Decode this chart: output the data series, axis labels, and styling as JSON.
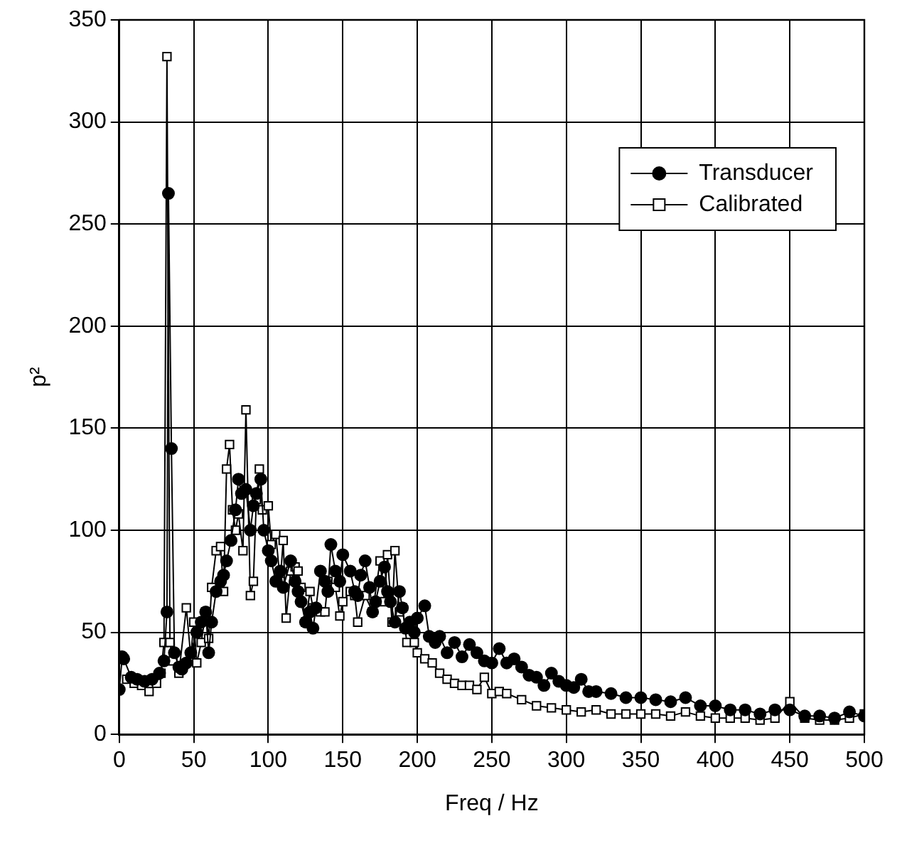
{
  "chart_data": {
    "type": "line",
    "xlabel": "Freq / Hz",
    "ylabel": "p²",
    "xlim": [
      0,
      500
    ],
    "ylim": [
      0,
      350
    ],
    "xticks": [
      0,
      50,
      100,
      150,
      200,
      250,
      300,
      350,
      400,
      450,
      500
    ],
    "yticks": [
      0,
      50,
      100,
      150,
      200,
      250,
      300,
      350
    ],
    "grid": true,
    "legend": "top right",
    "line_style": "solid",
    "series": [
      {
        "name": "Transducer",
        "color": "#000000",
        "marker": "circle",
        "x": [
          0,
          2,
          3,
          8,
          12,
          17,
          22,
          27,
          30,
          32,
          33,
          35,
          37,
          40,
          42,
          45,
          48,
          52,
          55,
          58,
          60,
          62,
          65,
          68,
          70,
          72,
          75,
          78,
          80,
          82,
          85,
          88,
          90,
          92,
          95,
          97,
          100,
          102,
          105,
          108,
          110,
          115,
          118,
          120,
          122,
          125,
          128,
          130,
          132,
          135,
          138,
          140,
          142,
          145,
          148,
          150,
          155,
          158,
          160,
          162,
          165,
          168,
          170,
          172,
          175,
          178,
          180,
          182,
          185,
          188,
          190,
          192,
          195,
          198,
          200,
          205,
          208,
          212,
          215,
          220,
          225,
          230,
          235,
          240,
          245,
          250,
          255,
          260,
          265,
          270,
          275,
          280,
          285,
          290,
          295,
          300,
          305,
          310,
          315,
          320,
          330,
          340,
          350,
          360,
          370,
          380,
          390,
          400,
          410,
          420,
          430,
          440,
          450,
          460,
          470,
          480,
          490,
          500
        ],
        "values": [
          22,
          38,
          37,
          28,
          27,
          26,
          27,
          30,
          36,
          60,
          265,
          140,
          40,
          33,
          32,
          35,
          40,
          50,
          55,
          60,
          40,
          55,
          70,
          75,
          78,
          85,
          95,
          110,
          125,
          118,
          120,
          100,
          112,
          118,
          125,
          100,
          90,
          85,
          75,
          80,
          72,
          85,
          75,
          70,
          65,
          55,
          60,
          52,
          62,
          80,
          75,
          70,
          93,
          80,
          75,
          88,
          80,
          70,
          68,
          78,
          85,
          72,
          60,
          65,
          75,
          82,
          70,
          65,
          55,
          70,
          62,
          52,
          55,
          50,
          57,
          63,
          48,
          45,
          48,
          40,
          45,
          38,
          44,
          40,
          36,
          35,
          42,
          35,
          37,
          33,
          29,
          28,
          24,
          30,
          26,
          24,
          23,
          27,
          21,
          21,
          20,
          18,
          18,
          17,
          16,
          18,
          14,
          14,
          12,
          12,
          10,
          12,
          12,
          9,
          9,
          8,
          11,
          9
        ]
      },
      {
        "name": "Calibrated",
        "color": "#000000",
        "marker": "square",
        "x": [
          5,
          10,
          15,
          20,
          25,
          28,
          30,
          32,
          34,
          36,
          40,
          45,
          48,
          50,
          52,
          55,
          58,
          60,
          62,
          65,
          68,
          70,
          72,
          74,
          76,
          78,
          80,
          83,
          85,
          88,
          90,
          92,
          94,
          96,
          100,
          102,
          105,
          108,
          110,
          112,
          115,
          118,
          120,
          122,
          125,
          128,
          130,
          135,
          138,
          140,
          145,
          148,
          150,
          155,
          158,
          160,
          165,
          170,
          175,
          178,
          180,
          183,
          185,
          188,
          190,
          193,
          198,
          200,
          205,
          210,
          215,
          220,
          225,
          230,
          235,
          240,
          245,
          250,
          255,
          260,
          270,
          280,
          290,
          300,
          310,
          320,
          330,
          340,
          350,
          360,
          370,
          380,
          390,
          400,
          410,
          420,
          430,
          440,
          450,
          460,
          470,
          480,
          490,
          500
        ],
        "values": [
          27,
          25,
          24,
          21,
          25,
          30,
          45,
          332,
          45,
          36,
          30,
          62,
          38,
          55,
          35,
          45,
          60,
          47,
          72,
          90,
          92,
          70,
          130,
          142,
          110,
          100,
          108,
          90,
          159,
          68,
          75,
          115,
          130,
          110,
          112,
          93,
          98,
          75,
          95,
          57,
          80,
          82,
          80,
          72,
          55,
          70,
          62,
          60,
          60,
          75,
          72,
          58,
          65,
          70,
          68,
          55,
          68,
          60,
          85,
          65,
          88,
          55,
          90,
          60,
          62,
          45,
          45,
          40,
          37,
          35,
          30,
          27,
          25,
          24,
          24,
          22,
          28,
          20,
          21,
          20,
          17,
          14,
          13,
          12,
          11,
          12,
          10,
          10,
          10,
          10,
          9,
          11,
          9,
          8,
          8,
          8,
          7,
          8,
          16,
          8,
          7,
          7,
          8,
          10
        ]
      }
    ]
  }
}
